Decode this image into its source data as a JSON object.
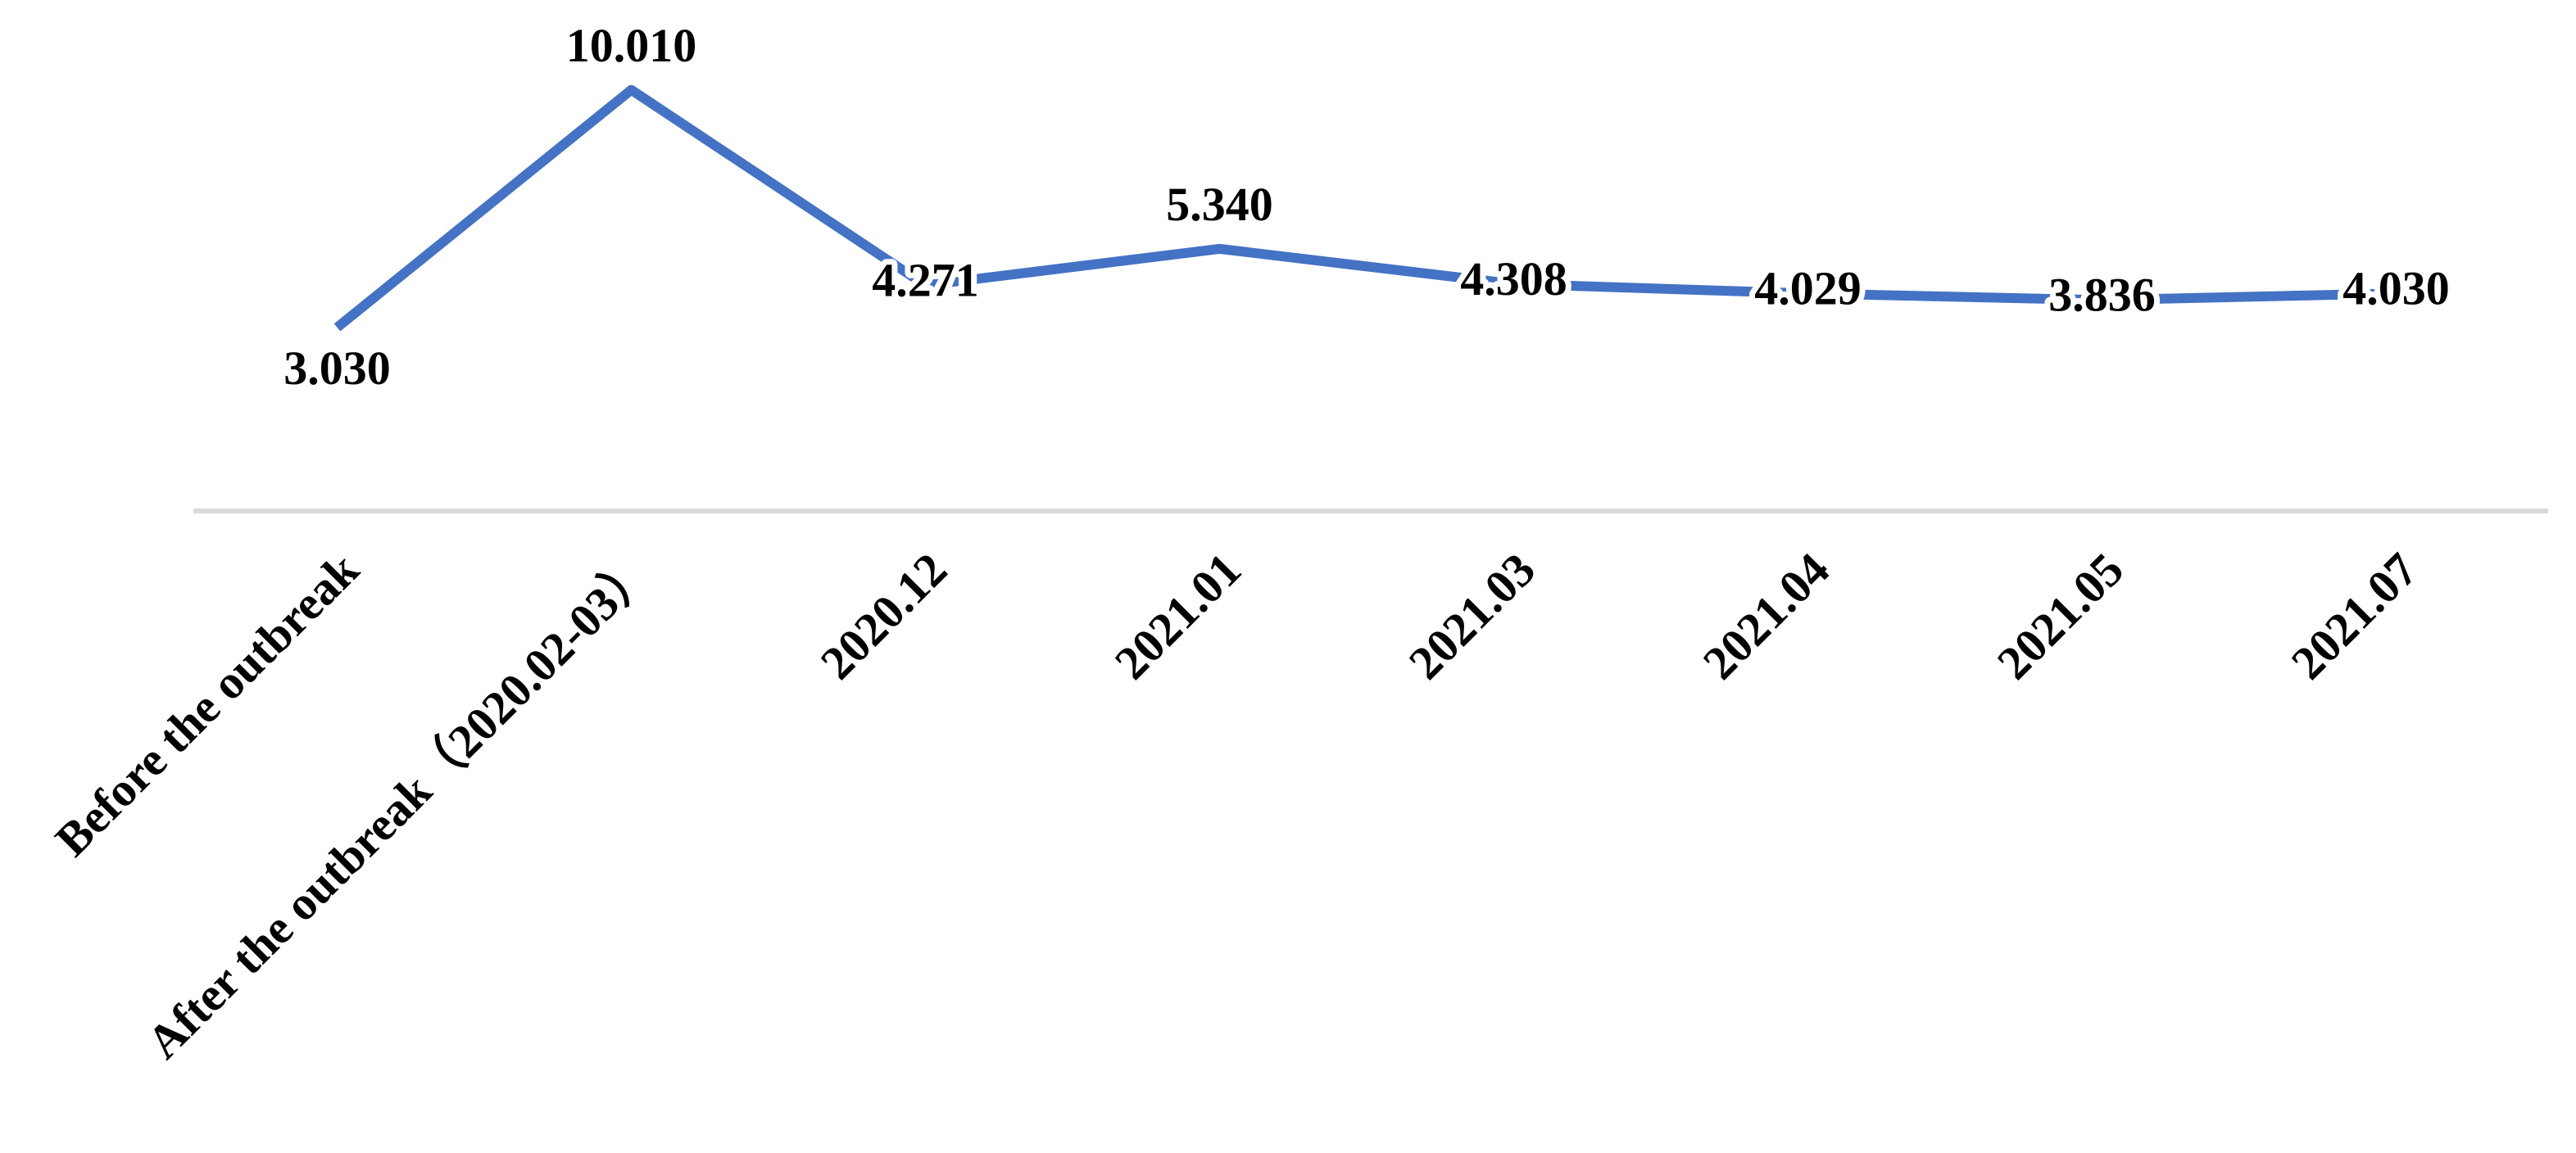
{
  "chart_data": {
    "type": "line",
    "categories": [
      "Before the outbreak",
      "After the outbreak（2020.02-03）",
      "2020.12",
      "2021.01",
      "2021.03",
      "2021.04",
      "2021.05",
      "2021.07"
    ],
    "series": [
      {
        "color": "#4472c4",
        "values": [
          3.03,
          10.01,
          4.271,
          5.34,
          4.308,
          4.029,
          3.836,
          4.03
        ],
        "value_labels": [
          "3.030",
          "10.010",
          "4.271",
          "5.340",
          "4.308",
          "4.029",
          "3.836",
          "4.030"
        ]
      }
    ],
    "ylim": [
      -2,
      12
    ]
  }
}
